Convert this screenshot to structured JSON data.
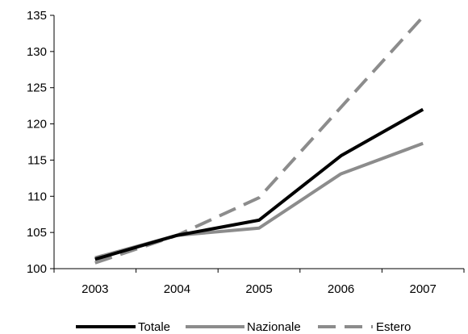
{
  "chart_data": {
    "type": "line",
    "x": [
      "2003",
      "2004",
      "2005",
      "2006",
      "2007"
    ],
    "ylim": [
      100,
      135
    ],
    "yticks": [
      100,
      105,
      110,
      115,
      120,
      125,
      130,
      135
    ],
    "grid": false,
    "legend_position": "bottom",
    "series": [
      {
        "name": "Totale",
        "values": [
          101.3,
          104.6,
          106.7,
          115.6,
          122.0
        ],
        "color": "#000000",
        "style": "solid"
      },
      {
        "name": "Nazionale",
        "values": [
          101.5,
          104.6,
          105.6,
          113.1,
          117.3
        ],
        "color": "#8c8c8c",
        "style": "solid"
      },
      {
        "name": "Estero",
        "values": [
          100.8,
          104.6,
          109.8,
          122.3,
          134.8
        ],
        "color": "#8c8c8c",
        "style": "dashed"
      }
    ]
  }
}
